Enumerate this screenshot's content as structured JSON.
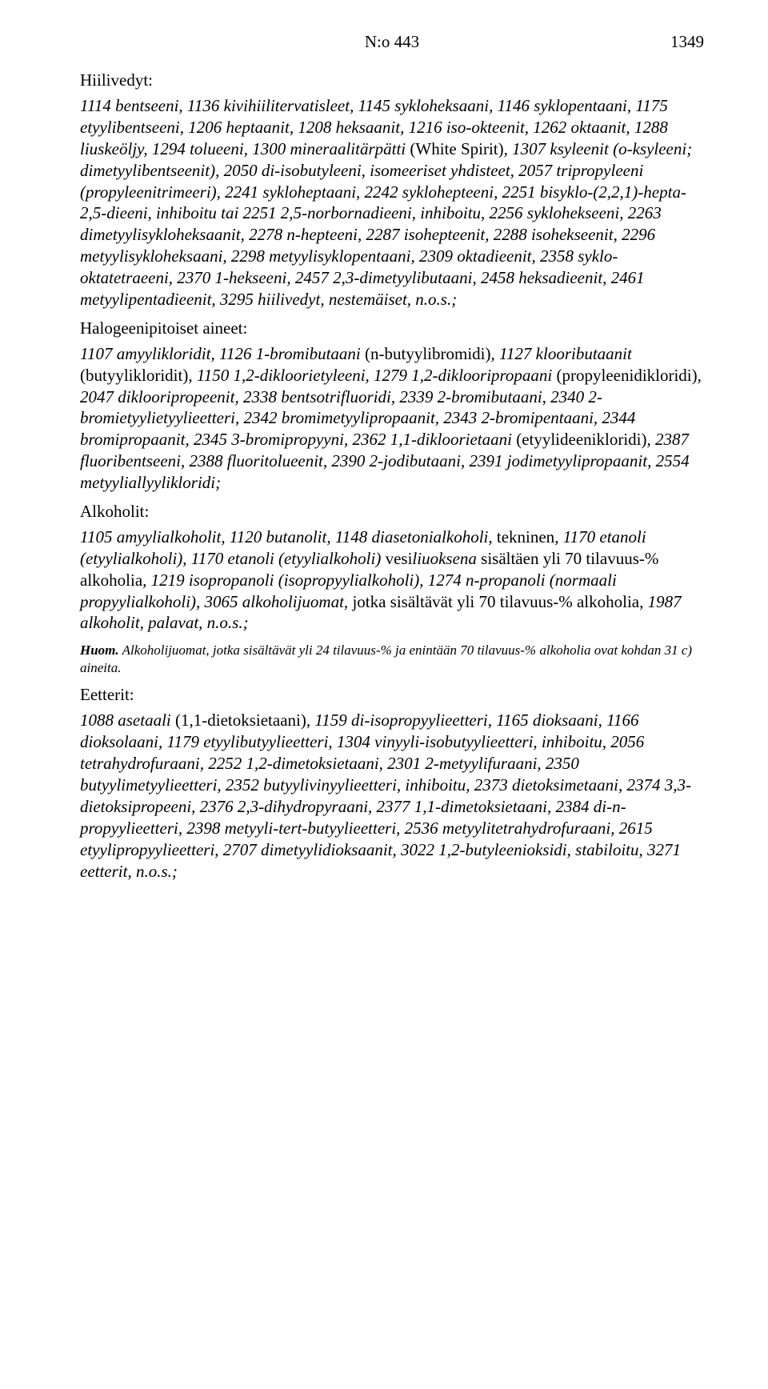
{
  "header": {
    "center": "N:o 443",
    "page_number": "1349"
  },
  "sections": [
    {
      "heading": "Hiilivedyt:",
      "paragraphs": [
        "1114 bentseeni, 1136 kivihiilitervatisleet, 1145 sykloheksaani, 1146 syklopentaani, 1175 etyylibentseeni, 1206 heptaanit, 1208 heksaanit, 1216 iso-okteenit, 1262 oktaanit, 1288 liuskeöljy, 1294 tolueeni, 1300 mineraalitärpätti <span class=\"upright\">(White Spirit)</span>, 1307 ksyleenit (o-ksyleeni; dimetyylibentseenit), 2050 di-isobutyleeni, isomeeriset yhdisteet, 2057 tripropyleeni (propyleenitrimeeri), 2241 sykloheptaani, 2242 syklohepteeni, 2251 bisyklo-(2,2,1)-hepta-2,5-dieeni, inhiboitu tai 2251 2,5-norbornadieeni, inhiboitu, 2256 syklohekseeni, 2263 dimetyylisykloheksaanit, 2278 n-hepteeni, 2287 isohepteenit, 2288 isohekseenit, 2296 metyylisykloheksaani, 2298 metyylisyklopentaani, 2309 oktadieenit, 2358 syklo-oktatetraeeni, 2370 1-hekseeni, 2457 2,3-dimetyylibutaani, 2458 heksadieenit, 2461 metyylipentadieenit, 3295 hiilivedyt, nestemäiset, n.o.s.;"
      ]
    },
    {
      "heading": "Halogeenipitoiset aineet:",
      "paragraphs": [
        "1107 amyylikloridit, 1126 1-bromibutaani <span class=\"upright\">(n-butyylibromidi)</span>, 1127 klooributaanit <span class=\"upright\">(butyylikloridit)</span>, 1150 1,2-dikloorietyleeni, 1279 1,2-diklooripropaani <span class=\"upright\">(propyleenidikloridi)</span>, 2047 diklooripropeenit, 2338 bentsotrifluoridi, 2339 2-bromibutaani, 2340 2-bromietyylietyylieetteri, 2342 bromimetyylipropaanit, 2343 2-bromipentaani, 2344 bromipropaanit, 2345 3-bromipropyyni, 2362 1,1-dikloorietaani <span class=\"upright\">(etyylideenikloridi)</span>, 2387 fluoribentseeni, 2388 fluoritolueenit, 2390 2-jodibutaani, 2391 jodimetyylipropaanit, 2554 metyyliallyylikloridi;"
      ]
    },
    {
      "heading": "Alkoholit:",
      "paragraphs": [
        "1105 amyylialkoholit, 1120 butanolit, 1148 diasetonialkoholi, <span class=\"upright\">tekninen</span>, 1170 etanoli (etyylialkoholi), 1170 etanoli (etyylialkoholi) <span class=\"upright\">vesi</span>liuoksena <span class=\"upright\">sisältäen yli 70 tilavuus-% alkoholia</span>, 1219 isopropanoli (isopropyylialkoholi), 1274 n-propanoli (normaali propyylialkoholi), 3065 alkoholijuomat, <span class=\"upright\">jotka sisältävät yli 70 tilavuus-% alkoholia</span>, 1987 alkoholit, palavat, n.o.s.;"
      ],
      "note_prefix": "Huom.",
      "note": "  Alkoholijuomat, jotka sisältävät yli 24 tilavuus-% ja enintään 70 tilavuus-% alkoholia ovat kohdan 31 c) aineita."
    },
    {
      "heading": "Eetterit:",
      "paragraphs": [
        "1088 asetaali <span class=\"upright\">(1,1-dietoksietaani)</span>, 1159 di-isopropyylieetteri, 1165 dioksaani, 1166 dioksolaani, 1179 etyylibutyylieetteri, 1304 vinyyli-isobutyylieetteri, inhiboitu, 2056 tetrahydrofuraani, 2252 1,2-dimetoksietaani, 2301 2-metyylifuraani, 2350 butyylimetyylieetteri, 2352 butyylivinyylieetteri, inhiboitu, 2373 dietoksimetaani, 2374 3,3-dietoksipropeeni, 2376 2,3-dihydropyraani, 2377 1,1-dimetoksietaani, 2384 di-n-propyylieetteri, 2398 metyyli-tert-butyylieetteri, 2536 metyylitetrahydrofuraani, 2615 etyylipropyylieetteri, 2707 dimetyylidioksaanit, 3022 1,2-butyleenioksidi, stabiloitu, 3271 eetterit, n.o.s.;"
      ]
    }
  ]
}
